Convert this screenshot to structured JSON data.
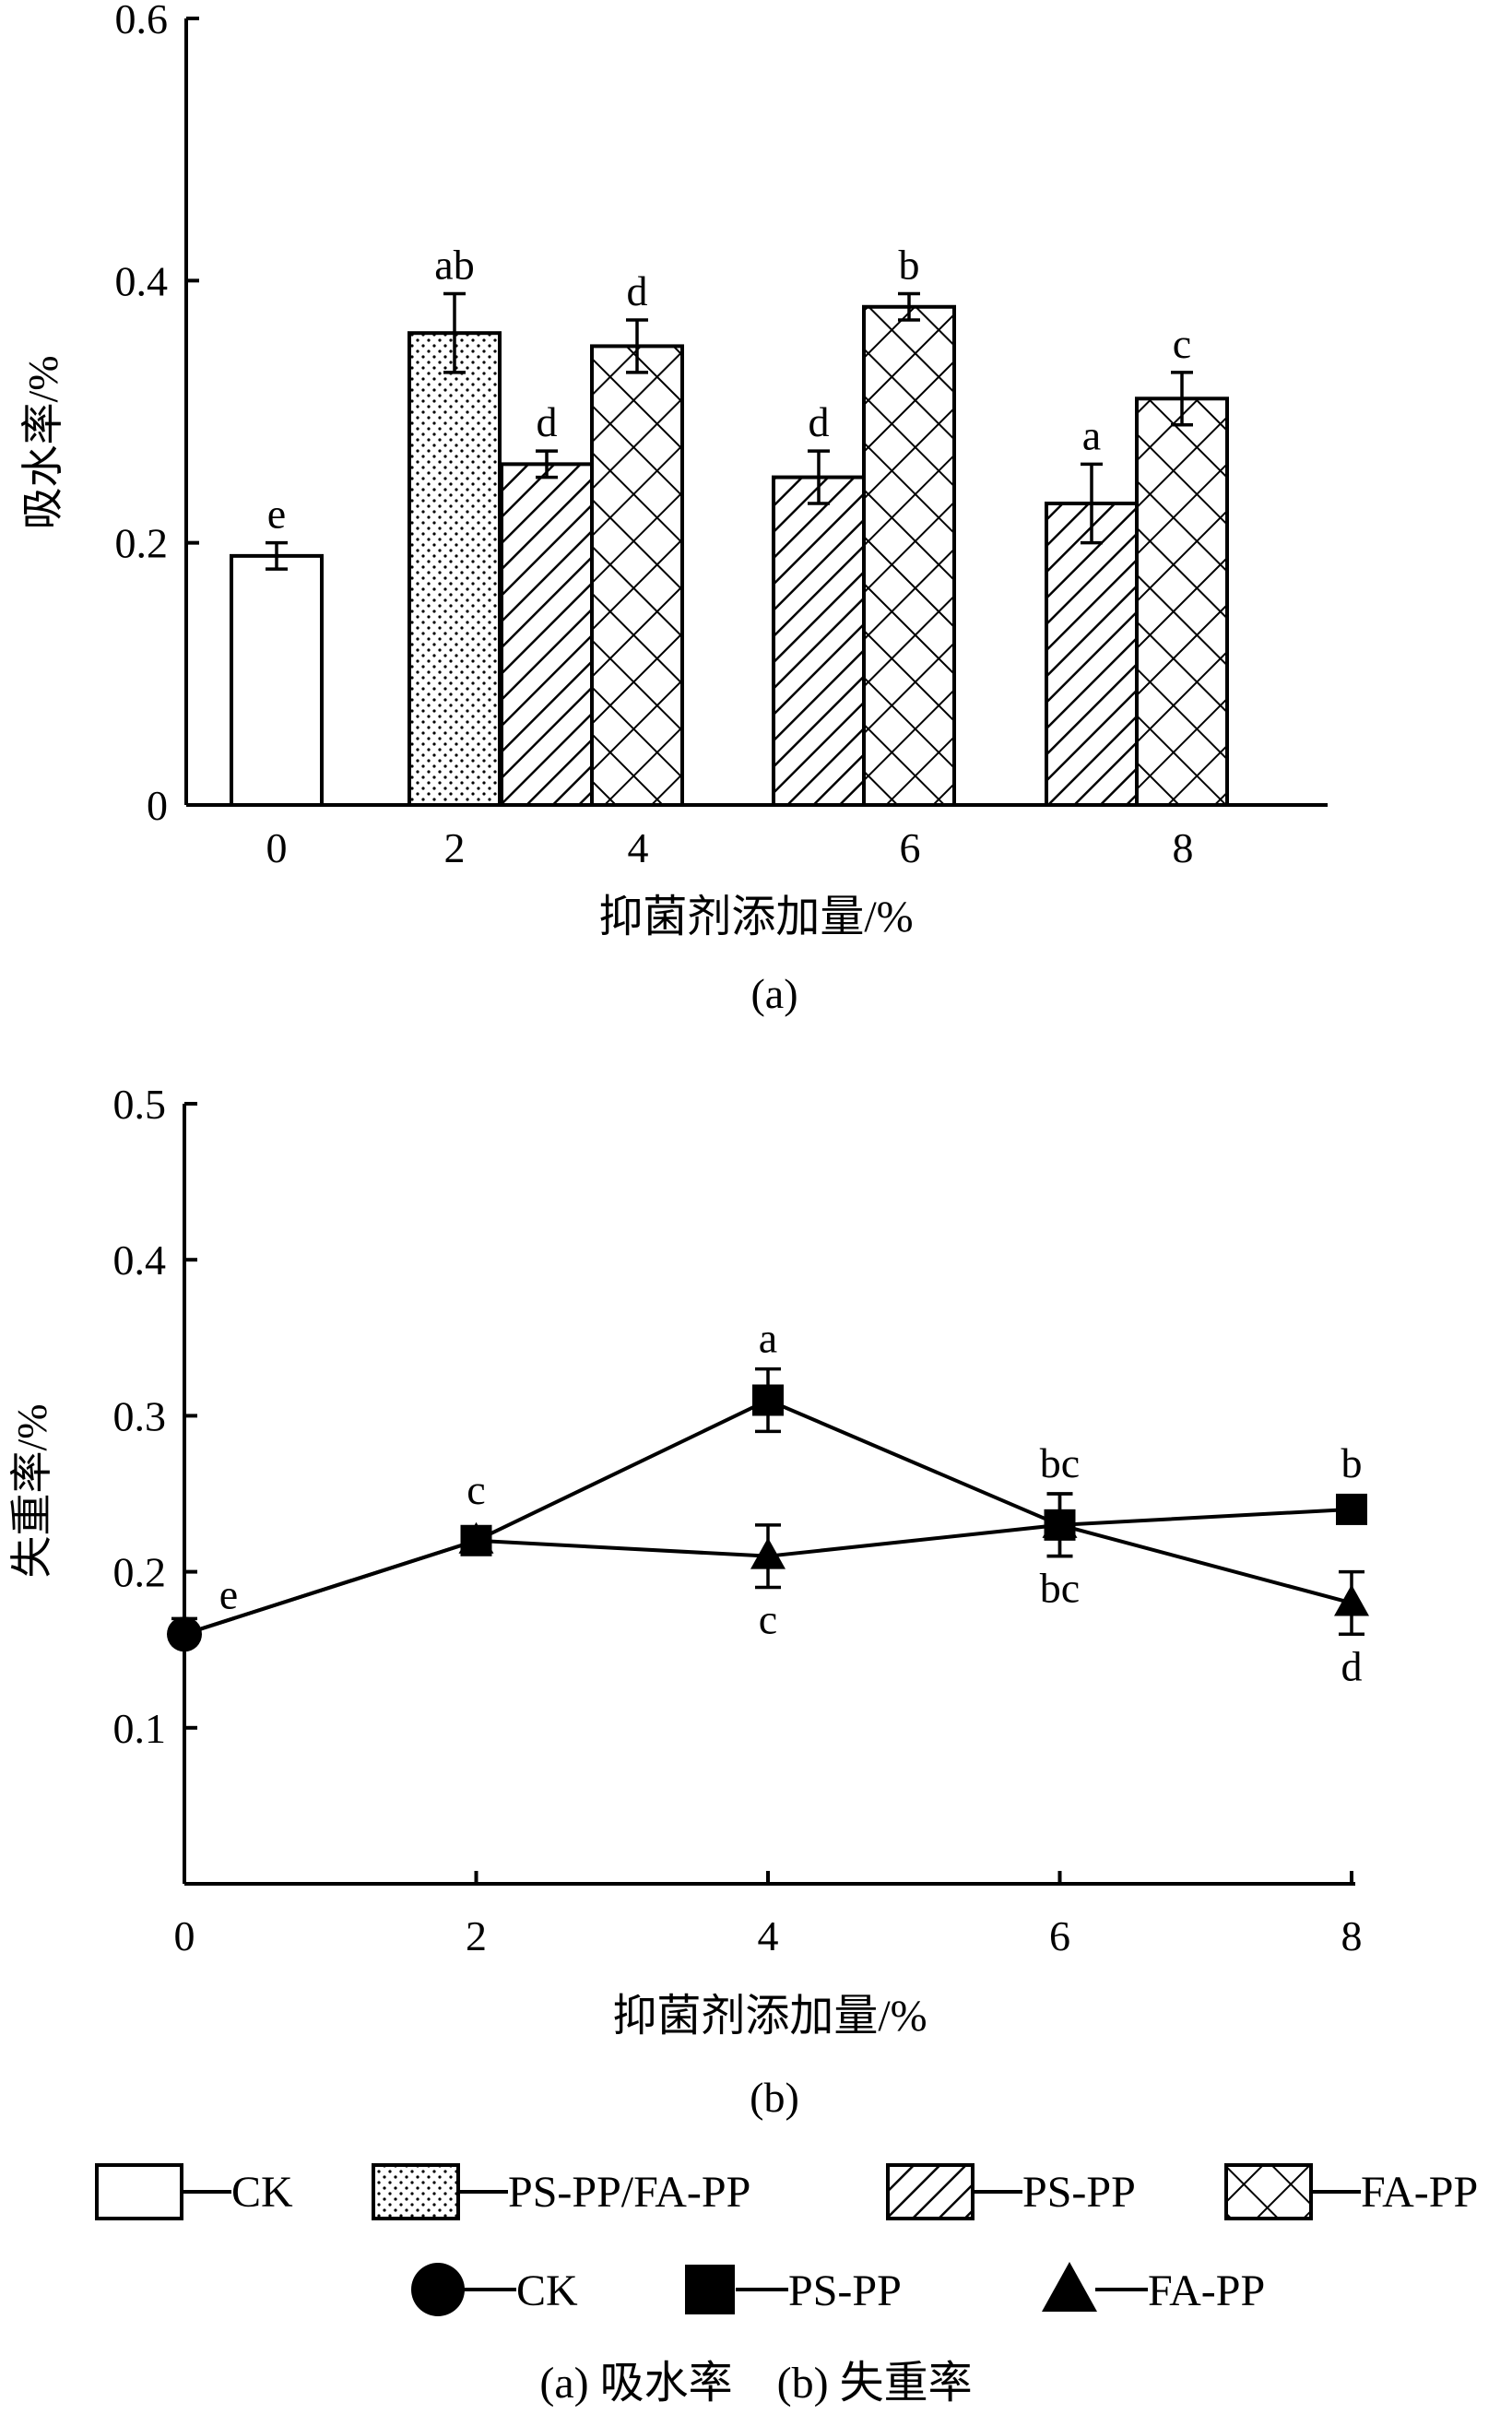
{
  "figure": {
    "caption": "(a) 吸水率　(b) 失重率"
  },
  "chart_data": [
    {
      "type": "bar",
      "panel_label": "(a)",
      "xlabel": "抑菌剂添加量/%",
      "ylabel": "吸水率/%",
      "ylim": [
        0,
        0.6
      ],
      "yticks": [
        "0",
        "0.2",
        "0.4",
        "0.6"
      ],
      "categories": [
        "0",
        "2",
        "4",
        "6",
        "8"
      ],
      "bars": [
        {
          "category": "0",
          "series": "CK",
          "value": 0.19,
          "error": 0.01,
          "label": "e"
        },
        {
          "category": "2",
          "series": "PS-PP/FA-PP",
          "value": 0.36,
          "error": 0.03,
          "label": "ab"
        },
        {
          "category": "4",
          "series": "PS-PP",
          "value": 0.26,
          "error": 0.01,
          "label": "d"
        },
        {
          "category": "4",
          "series": "FA-PP",
          "value": 0.35,
          "error": 0.02,
          "label": "d"
        },
        {
          "category": "6",
          "series": "PS-PP",
          "value": 0.25,
          "error": 0.02,
          "label": "d"
        },
        {
          "category": "6",
          "series": "FA-PP",
          "value": 0.38,
          "error": 0.01,
          "label": "b"
        },
        {
          "category": "8",
          "series": "PS-PP",
          "value": 0.23,
          "error": 0.03,
          "label": "a"
        },
        {
          "category": "8",
          "series": "FA-PP",
          "value": 0.31,
          "error": 0.02,
          "label": "c"
        }
      ],
      "legend": [
        {
          "name": "CK",
          "pattern": "empty"
        },
        {
          "name": "PS-PP/FA-PP",
          "pattern": "dots"
        },
        {
          "name": "PS-PP",
          "pattern": "diagonal-hatch"
        },
        {
          "name": "FA-PP",
          "pattern": "crosshatch"
        }
      ]
    },
    {
      "type": "line",
      "panel_label": "(b)",
      "xlabel": "抑菌剂添加量/%",
      "ylabel": "失重率/%",
      "ylim": [
        0,
        0.5
      ],
      "xlim": [
        0,
        8
      ],
      "yticks": [
        "0.1",
        "0.2",
        "0.3",
        "0.4",
        "0.5"
      ],
      "xticks": [
        "0",
        "2",
        "4",
        "6",
        "8"
      ],
      "ck_point": {
        "x": 0,
        "y": 0.16,
        "error": 0.01,
        "label": "e"
      },
      "series": [
        {
          "name": "PS-PP",
          "marker": "square",
          "x": [
            0,
            2,
            4,
            6,
            8
          ],
          "y": [
            0.16,
            0.22,
            0.31,
            0.23,
            0.24
          ],
          "error": [
            0.01,
            0.005,
            0.02,
            0.02,
            0.005
          ],
          "labels": [
            "",
            "c",
            "a",
            "bc",
            "b"
          ]
        },
        {
          "name": "FA-PP",
          "marker": "triangle",
          "x": [
            0,
            2,
            4,
            6,
            8
          ],
          "y": [
            0.16,
            0.22,
            0.21,
            0.23,
            0.18
          ],
          "error": [
            0.01,
            0.005,
            0.02,
            0.02,
            0.02
          ],
          "labels": [
            "",
            "",
            "c",
            "bc",
            "d"
          ]
        }
      ],
      "legend": [
        {
          "name": "CK",
          "marker": "circle"
        },
        {
          "name": "PS-PP",
          "marker": "square"
        },
        {
          "name": "FA-PP",
          "marker": "triangle"
        }
      ]
    }
  ]
}
